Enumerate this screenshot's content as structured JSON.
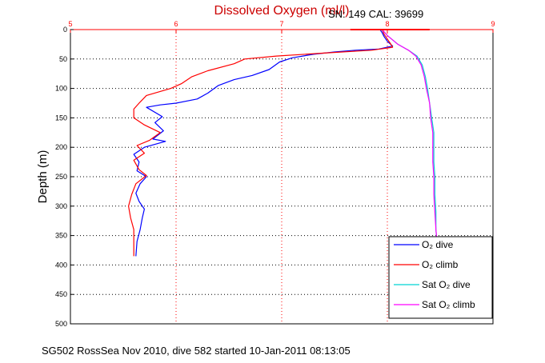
{
  "chart_data": {
    "type": "line",
    "title": "Dissolved Oxygen (ml/l)",
    "subtitle": "SN: 149  CAL: 39699",
    "xlabel": "Dissolved Oxygen (ml/l)",
    "ylabel": "Depth (m)",
    "caption": "SG502 RossSea Nov 2010, dive 582 started 10-Jan-2011 08:13:05",
    "xlim": [
      5,
      9
    ],
    "ylim": [
      0,
      500
    ],
    "y_reversed": true,
    "x_ticks": [
      "5",
      "6",
      "7",
      "8",
      "9"
    ],
    "y_ticks": [
      "0",
      "50",
      "100",
      "150",
      "200",
      "250",
      "300",
      "350",
      "400",
      "450",
      "500"
    ],
    "grid": true,
    "legend_position": "bottom-right",
    "colors": {
      "axis_top": "#ff0000",
      "grid": "#ff0000",
      "frame": "#000000",
      "title": "#cc0000"
    },
    "series": [
      {
        "name": "O2 dive",
        "legend_label": "O₂ dive",
        "color": "#0000ff",
        "points": [
          [
            7.93,
            0
          ],
          [
            7.95,
            5
          ],
          [
            7.97,
            12
          ],
          [
            8.0,
            20
          ],
          [
            8.05,
            28
          ],
          [
            7.92,
            33
          ],
          [
            7.7,
            35
          ],
          [
            7.5,
            38
          ],
          [
            7.3,
            42
          ],
          [
            7.1,
            48
          ],
          [
            6.98,
            55
          ],
          [
            6.88,
            68
          ],
          [
            6.72,
            78
          ],
          [
            6.55,
            85
          ],
          [
            6.4,
            95
          ],
          [
            6.3,
            108
          ],
          [
            6.2,
            118
          ],
          [
            6.0,
            125
          ],
          [
            5.85,
            128
          ],
          [
            5.72,
            132
          ],
          [
            5.87,
            148
          ],
          [
            5.8,
            158
          ],
          [
            5.88,
            172
          ],
          [
            5.78,
            186
          ],
          [
            5.9,
            190
          ],
          [
            5.7,
            200
          ],
          [
            5.6,
            212
          ],
          [
            5.65,
            225
          ],
          [
            5.63,
            240
          ],
          [
            5.72,
            250
          ],
          [
            5.66,
            262
          ],
          [
            5.62,
            278
          ],
          [
            5.65,
            292
          ],
          [
            5.7,
            305
          ],
          [
            5.68,
            320
          ],
          [
            5.66,
            340
          ],
          [
            5.63,
            360
          ],
          [
            5.62,
            385
          ]
        ]
      },
      {
        "name": "O2 climb",
        "legend_label": "O₂ climb",
        "color": "#ff0000",
        "points": [
          [
            7.95,
            0
          ],
          [
            7.97,
            8
          ],
          [
            8.0,
            16
          ],
          [
            8.03,
            24
          ],
          [
            8.05,
            30
          ],
          [
            7.85,
            35
          ],
          [
            7.4,
            40
          ],
          [
            6.95,
            45
          ],
          [
            6.65,
            50
          ],
          [
            6.55,
            58
          ],
          [
            6.3,
            70
          ],
          [
            6.15,
            80
          ],
          [
            6.05,
            92
          ],
          [
            5.95,
            100
          ],
          [
            5.72,
            112
          ],
          [
            5.65,
            125
          ],
          [
            5.6,
            135
          ],
          [
            5.6,
            150
          ],
          [
            5.7,
            162
          ],
          [
            5.85,
            175
          ],
          [
            5.75,
            188
          ],
          [
            5.63,
            197
          ],
          [
            5.7,
            210
          ],
          [
            5.6,
            222
          ],
          [
            5.65,
            238
          ],
          [
            5.72,
            248
          ],
          [
            5.62,
            262
          ],
          [
            5.58,
            280
          ],
          [
            5.55,
            300
          ],
          [
            5.57,
            320
          ],
          [
            5.6,
            340
          ],
          [
            5.6,
            360
          ],
          [
            5.6,
            385
          ]
        ]
      },
      {
        "name": "Sat O2 dive",
        "legend_label": "Sat O₂ dive",
        "color": "#00d4d4",
        "points": [
          [
            7.95,
            0
          ],
          [
            8.0,
            10
          ],
          [
            8.1,
            25
          ],
          [
            8.2,
            35
          ],
          [
            8.28,
            45
          ],
          [
            8.33,
            60
          ],
          [
            8.36,
            80
          ],
          [
            8.38,
            100
          ],
          [
            8.4,
            125
          ],
          [
            8.42,
            150
          ],
          [
            8.44,
            175
          ],
          [
            8.44,
            200
          ],
          [
            8.44,
            225
          ],
          [
            8.45,
            250
          ],
          [
            8.45,
            280
          ],
          [
            8.46,
            310
          ],
          [
            8.46,
            340
          ],
          [
            8.47,
            360
          ]
        ]
      },
      {
        "name": "Sat O2 climb",
        "legend_label": "Sat O₂ climb",
        "color": "#ff00ff",
        "points": [
          [
            7.95,
            0
          ],
          [
            8.0,
            10
          ],
          [
            8.1,
            25
          ],
          [
            8.2,
            35
          ],
          [
            8.27,
            45
          ],
          [
            8.32,
            60
          ],
          [
            8.35,
            80
          ],
          [
            8.37,
            100
          ],
          [
            8.4,
            125
          ],
          [
            8.41,
            150
          ],
          [
            8.43,
            175
          ],
          [
            8.43,
            200
          ],
          [
            8.43,
            225
          ],
          [
            8.44,
            250
          ],
          [
            8.44,
            280
          ],
          [
            8.45,
            310
          ],
          [
            8.46,
            340
          ],
          [
            8.47,
            360
          ]
        ]
      }
    ]
  }
}
